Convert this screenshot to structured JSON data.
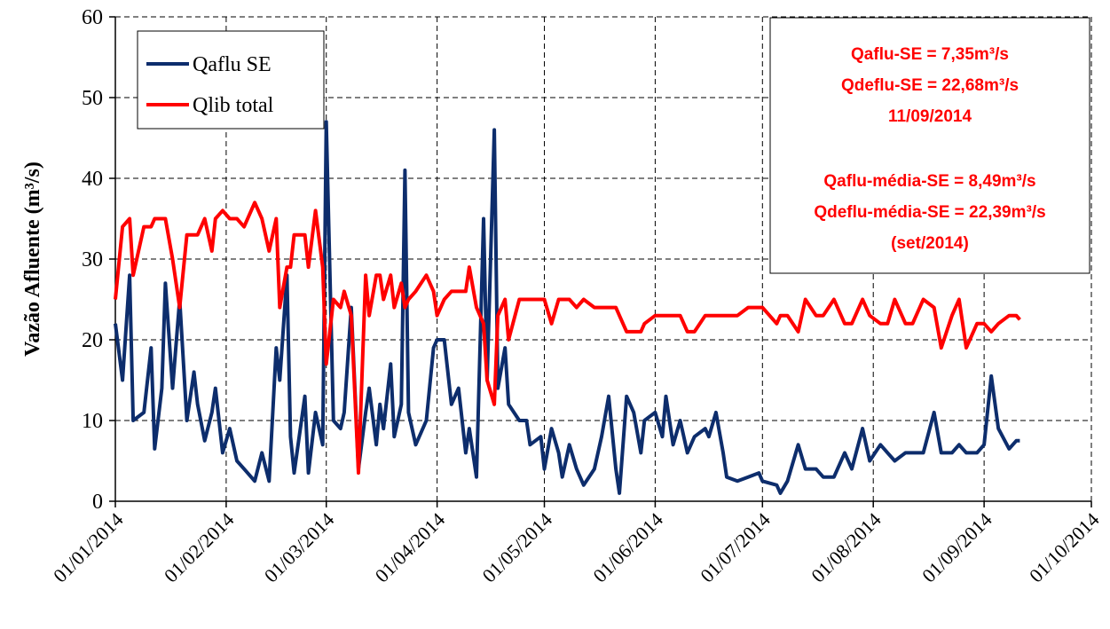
{
  "chart_data": {
    "type": "line",
    "y_label": "Vazão Afluente  (m³/s)",
    "x": [
      "2014-01-01",
      "2014-01-03",
      "2014-01-05",
      "2014-01-06",
      "2014-01-09",
      "2014-01-11",
      "2014-01-12",
      "2014-01-14",
      "2014-01-15",
      "2014-01-17",
      "2014-01-19",
      "2014-01-21",
      "2014-01-23",
      "2014-01-24",
      "2014-01-26",
      "2014-01-28",
      "2014-01-29",
      "2014-01-31",
      "2014-02-02",
      "2014-02-04",
      "2014-02-06",
      "2014-02-09",
      "2014-02-11",
      "2014-02-13",
      "2014-02-15",
      "2014-02-16",
      "2014-02-18",
      "2014-02-19",
      "2014-02-20",
      "2014-02-23",
      "2014-02-24",
      "2014-02-26",
      "2014-02-28",
      "2014-03-01",
      "2014-03-03",
      "2014-03-05",
      "2014-03-06",
      "2014-03-08",
      "2014-03-10",
      "2014-03-12",
      "2014-03-13",
      "2014-03-15",
      "2014-03-16",
      "2014-03-17",
      "2014-03-19",
      "2014-03-20",
      "2014-03-22",
      "2014-03-23",
      "2014-03-24",
      "2014-03-26",
      "2014-03-29",
      "2014-03-31",
      "2014-04-01",
      "2014-04-03",
      "2014-04-05",
      "2014-04-07",
      "2014-04-09",
      "2014-04-10",
      "2014-04-12",
      "2014-04-14",
      "2014-04-15",
      "2014-04-17",
      "2014-04-18",
      "2014-04-20",
      "2014-04-21",
      "2014-04-24",
      "2014-04-26",
      "2014-04-27",
      "2014-04-30",
      "2014-05-01",
      "2014-05-03",
      "2014-05-05",
      "2014-05-06",
      "2014-05-08",
      "2014-05-10",
      "2014-05-12",
      "2014-05-15",
      "2014-05-17",
      "2014-05-19",
      "2014-05-21",
      "2014-05-22",
      "2014-05-24",
      "2014-05-26",
      "2014-05-28",
      "2014-05-29",
      "2014-06-01",
      "2014-06-03",
      "2014-06-04",
      "2014-06-06",
      "2014-06-08",
      "2014-06-10",
      "2014-06-12",
      "2014-06-15",
      "2014-06-16",
      "2014-06-18",
      "2014-06-20",
      "2014-06-21",
      "2014-06-24",
      "2014-06-27",
      "2014-06-30",
      "2014-07-01",
      "2014-07-05",
      "2014-07-06",
      "2014-07-08",
      "2014-07-11",
      "2014-07-13",
      "2014-07-16",
      "2014-07-18",
      "2014-07-21",
      "2014-07-24",
      "2014-07-26",
      "2014-07-29",
      "2014-07-31",
      "2014-08-03",
      "2014-08-05",
      "2014-08-07",
      "2014-08-10",
      "2014-08-12",
      "2014-08-15",
      "2014-08-18",
      "2014-08-20",
      "2014-08-23",
      "2014-08-25",
      "2014-08-27",
      "2014-08-30",
      "2014-09-01",
      "2014-09-03",
      "2014-09-05",
      "2014-09-08",
      "2014-09-10",
      "2014-09-11"
    ],
    "series": [
      {
        "name": "Qaflu SE",
        "color": "#0d2d6c",
        "values": [
          22,
          15,
          28,
          10,
          11,
          19,
          6.5,
          14,
          27,
          14,
          25,
          10,
          16,
          12,
          7.5,
          11,
          14,
          6,
          9,
          5,
          4,
          2.5,
          6,
          2.5,
          19,
          15,
          28,
          8,
          3.5,
          13,
          3.5,
          11,
          7,
          47,
          10,
          9,
          11,
          24,
          4,
          11,
          14,
          7,
          12,
          9,
          17,
          8,
          12,
          41,
          11,
          7,
          10,
          19,
          20,
          20,
          12,
          14,
          6,
          9,
          3,
          35,
          15,
          46,
          14,
          19,
          12,
          10,
          10,
          7,
          8,
          4,
          9,
          6,
          3,
          7,
          4,
          2,
          4,
          8,
          13,
          4,
          1,
          13,
          11,
          6,
          10,
          11,
          8,
          13,
          7,
          10,
          6,
          8,
          9,
          8,
          11,
          6,
          3,
          2.5,
          3,
          3.5,
          2.5,
          2,
          1,
          2.5,
          7,
          4,
          4,
          3,
          3,
          6,
          4,
          9,
          5,
          7,
          6,
          5,
          6,
          6,
          6,
          11,
          6,
          6,
          7,
          6,
          6,
          7,
          15.5,
          9,
          6.5,
          7.5,
          7.5
        ]
      },
      {
        "name": "Qlib total",
        "color": "#ff0000",
        "values": [
          25,
          34,
          35,
          28,
          34,
          34,
          35,
          35,
          35,
          30,
          24,
          33,
          33,
          33,
          35,
          31,
          35,
          36,
          35,
          35,
          34,
          37,
          35,
          31,
          35,
          24,
          29,
          29,
          33,
          33,
          29,
          36,
          29,
          17,
          25,
          24,
          26,
          23,
          3.5,
          28,
          23,
          28,
          28,
          25,
          28,
          24,
          27,
          24,
          25,
          26,
          28,
          26,
          23,
          25,
          26,
          26,
          26,
          29,
          24,
          22,
          15,
          12,
          23,
          25,
          20,
          25,
          25,
          25,
          25,
          25,
          22,
          25,
          25,
          25,
          24,
          25,
          24,
          24,
          24,
          24,
          23,
          21,
          21,
          21,
          22,
          23,
          23,
          23,
          23,
          23,
          21,
          21,
          23,
          23,
          23,
          23,
          23,
          23,
          24,
          24,
          24,
          22,
          23,
          23,
          21,
          25,
          23,
          23,
          25,
          22,
          22,
          25,
          23,
          22,
          22,
          25,
          22,
          22,
          25,
          24,
          19,
          23,
          25,
          19,
          22,
          22,
          21,
          22,
          23,
          23,
          22.5
        ]
      }
    ],
    "xlim": [
      "2014-01-01",
      "2014-10-01"
    ],
    "xticks": [
      {
        "value": "2014-01-01",
        "label": "01/01/2014"
      },
      {
        "value": "2014-02-01",
        "label": "01/02/2014"
      },
      {
        "value": "2014-03-01",
        "label": "01/03/2014"
      },
      {
        "value": "2014-04-01",
        "label": "01/04/2014"
      },
      {
        "value": "2014-05-01",
        "label": "01/05/2014"
      },
      {
        "value": "2014-06-01",
        "label": "01/06/2014"
      },
      {
        "value": "2014-07-01",
        "label": "01/07/2014"
      },
      {
        "value": "2014-08-01",
        "label": "01/08/2014"
      },
      {
        "value": "2014-09-01",
        "label": "01/09/2014"
      },
      {
        "value": "2014-10-01",
        "label": "01/10/2014"
      }
    ],
    "ylim": [
      0,
      60
    ],
    "yticks": [
      0,
      10,
      20,
      30,
      40,
      50,
      60
    ],
    "grid": true,
    "legend": "top-left",
    "annotations": [
      "Qaflu-SE = 7,35m³/s",
      "Qdeflu-SE = 22,68m³/s",
      "11/09/2014",
      "Qaflu-média-SE = 8,49m³/s",
      "Qdeflu-média-SE = 22,39m³/s",
      "(set/2014)"
    ]
  }
}
